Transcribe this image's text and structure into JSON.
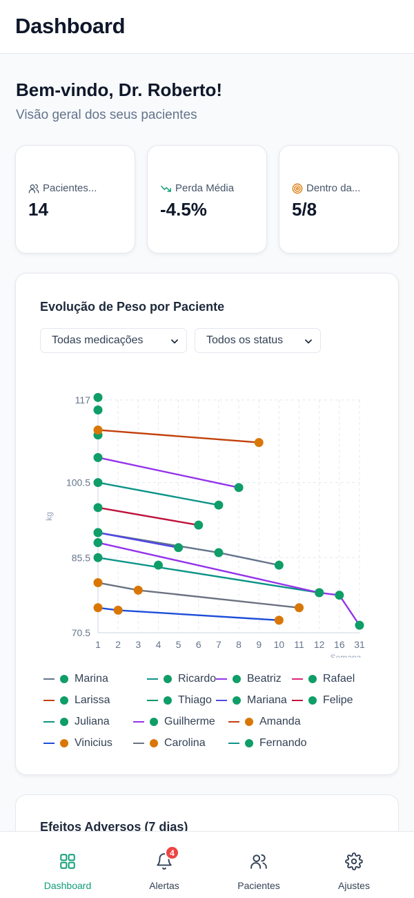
{
  "header": {
    "title": "Dashboard"
  },
  "welcome": {
    "title": "Bem-vindo, Dr. Roberto!",
    "subtitle": "Visão geral dos seus pacientes"
  },
  "stats": [
    {
      "label": "Pacientes...",
      "value": "14",
      "icon": "users-icon"
    },
    {
      "label": "Perda Média",
      "value": "-4.5%",
      "icon": "trending-down-icon"
    },
    {
      "label": "Dentro da...",
      "value": "5/8",
      "icon": "target-icon"
    }
  ],
  "chart_card": {
    "title": "Evolução de Peso por Paciente",
    "filter_medication": "Todas medicações",
    "filter_status": "Todos os status"
  },
  "colors": {
    "accent": "#0f9d78",
    "dot_green": "#0f9d68",
    "dot_orange": "#d97706",
    "badge_red": "#ef4444"
  },
  "chart_data": {
    "type": "line",
    "ylabel": "kg",
    "xlabel": "Semana",
    "y_ticks": [
      "117",
      "100.5",
      "85.5",
      "70.5"
    ],
    "x_ticks": [
      "1",
      "2",
      "3",
      "4",
      "5",
      "6",
      "7",
      "8",
      "9",
      "10",
      "11",
      "12",
      "16",
      "31"
    ],
    "ylim": [
      70.5,
      117
    ],
    "grid": true,
    "legend_position": "bottom",
    "series": [
      {
        "name": "Marina",
        "line_color": "#64748b",
        "dot_color": "#0f9d68",
        "points": [
          [
            1,
            90.5
          ],
          [
            7,
            86.5
          ],
          [
            10,
            84
          ]
        ]
      },
      {
        "name": "Ricardo",
        "line_color": "#0d9488",
        "dot_color": "#0f9d68",
        "points": [
          [
            1,
            85.5
          ],
          [
            12,
            78.5
          ]
        ]
      },
      {
        "name": "Beatriz",
        "line_color": "#9333ea",
        "dot_color": "#0f9d68",
        "points": [
          [
            1,
            88.5
          ],
          [
            12,
            78.5
          ],
          [
            16,
            78
          ],
          [
            31,
            72
          ]
        ]
      },
      {
        "name": "Rafael",
        "line_color": "#db2777",
        "dot_color": "#0f9d68",
        "points": [
          [
            1,
            117.5
          ]
        ]
      },
      {
        "name": "Larissa",
        "line_color": "#c2410c",
        "dot_color": "#0f9d68",
        "points": [
          [
            1,
            115
          ]
        ]
      },
      {
        "name": "Thiago",
        "line_color": "#059669",
        "dot_color": "#0f9d68",
        "points": [
          [
            1,
            110
          ]
        ]
      },
      {
        "name": "Mariana",
        "line_color": "#4f46e5",
        "dot_color": "#0f9d68",
        "points": [
          [
            1,
            90.5
          ],
          [
            5,
            87.5
          ]
        ]
      },
      {
        "name": "Felipe",
        "line_color": "#be123c",
        "dot_color": "#0f9d68",
        "points": [
          [
            1,
            95.5
          ],
          [
            6,
            92
          ]
        ]
      },
      {
        "name": "Juliana",
        "line_color": "#0d9488",
        "dot_color": "#0f9d68",
        "points": [
          [
            1,
            100.5
          ],
          [
            7,
            96
          ]
        ]
      },
      {
        "name": "Guilherme",
        "line_color": "#9333ea",
        "dot_color": "#0f9d68",
        "points": [
          [
            1,
            105.5
          ],
          [
            8,
            99.5
          ]
        ]
      },
      {
        "name": "Amanda",
        "line_color": "#c2410c",
        "dot_color": "#d97706",
        "points": [
          [
            1,
            111
          ],
          [
            9,
            108.5
          ]
        ]
      },
      {
        "name": "Vinicius",
        "line_color": "#1d4ed8",
        "dot_color": "#d97706",
        "points": [
          [
            1,
            75.5
          ],
          [
            2,
            75
          ],
          [
            10,
            73
          ]
        ]
      },
      {
        "name": "Carolina",
        "line_color": "#6b7280",
        "dot_color": "#d97706",
        "points": [
          [
            1,
            80.5
          ],
          [
            3,
            79
          ],
          [
            11,
            75.5
          ]
        ]
      },
      {
        "name": "Fernando",
        "line_color": "#0d9488",
        "dot_color": "#0f9d68",
        "points": [
          [
            4,
            84
          ]
        ]
      }
    ]
  },
  "adverse_card": {
    "title": "Efeitos Adversos (7 dias)"
  },
  "nav": [
    {
      "label": "Dashboard",
      "icon": "grid-icon",
      "active": true
    },
    {
      "label": "Alertas",
      "icon": "bell-icon",
      "badge": "4"
    },
    {
      "label": "Pacientes",
      "icon": "users-icon"
    },
    {
      "label": "Ajustes",
      "icon": "gear-icon"
    }
  ]
}
